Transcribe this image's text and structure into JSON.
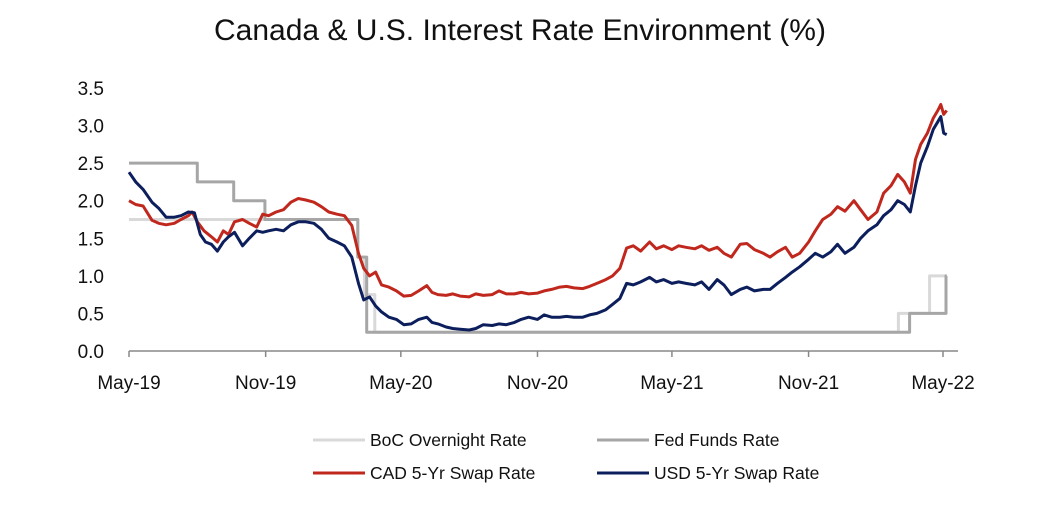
{
  "chart_data": {
    "type": "line",
    "title": "Canada & U.S. Interest Rate Environment (%)",
    "xlabel": "",
    "ylabel": "",
    "x_range": [
      "2019-05-01",
      "2022-05-01"
    ],
    "ylim": [
      0,
      3.5
    ],
    "y_ticks": [
      "0.0",
      "0.5",
      "1.0",
      "1.5",
      "2.0",
      "2.5",
      "3.0",
      "3.5"
    ],
    "x_ticks": [
      {
        "date": "2019-05-01",
        "label": "May-19"
      },
      {
        "date": "2019-11-01",
        "label": "Nov-19"
      },
      {
        "date": "2020-05-01",
        "label": "May-20"
      },
      {
        "date": "2020-11-01",
        "label": "Nov-20"
      },
      {
        "date": "2021-05-01",
        "label": "May-21"
      },
      {
        "date": "2021-11-01",
        "label": "Nov-21"
      },
      {
        "date": "2022-05-01",
        "label": "May-22"
      }
    ],
    "grid": false,
    "legend_position": "bottom",
    "legend_order": [
      0,
      2,
      1,
      3
    ],
    "series": [
      {
        "name": "BoC Overnight Rate",
        "color": "#d9d9d9",
        "step": true,
        "points": [
          [
            "2019-05-01",
            1.75
          ],
          [
            "2020-03-04",
            1.25
          ],
          [
            "2020-03-13",
            0.75
          ],
          [
            "2020-03-27",
            0.25
          ],
          [
            "2022-03-02",
            0.5
          ],
          [
            "2022-04-13",
            1.0
          ],
          [
            "2022-05-06",
            1.0
          ]
        ]
      },
      {
        "name": "Fed Funds Rate",
        "color": "#a6a6a6",
        "step": true,
        "points": [
          [
            "2019-05-01",
            2.5
          ],
          [
            "2019-08-01",
            2.25
          ],
          [
            "2019-09-19",
            2.0
          ],
          [
            "2019-10-31",
            1.75
          ],
          [
            "2020-03-04",
            1.25
          ],
          [
            "2020-03-16",
            0.25
          ],
          [
            "2022-03-17",
            0.5
          ],
          [
            "2022-05-05",
            1.0
          ],
          [
            "2022-05-06",
            1.0
          ]
        ]
      },
      {
        "name": "CAD 5-Yr Swap Rate",
        "color": "#c0281e",
        "step": false,
        "points": [
          [
            "2019-05-01",
            2.0
          ],
          [
            "2019-05-10",
            1.95
          ],
          [
            "2019-05-20",
            1.93
          ],
          [
            "2019-06-01",
            1.74
          ],
          [
            "2019-06-10",
            1.7
          ],
          [
            "2019-06-20",
            1.68
          ],
          [
            "2019-07-01",
            1.7
          ],
          [
            "2019-07-10",
            1.75
          ],
          [
            "2019-07-20",
            1.8
          ],
          [
            "2019-07-25",
            1.85
          ],
          [
            "2019-08-01",
            1.72
          ],
          [
            "2019-08-10",
            1.6
          ],
          [
            "2019-08-20",
            1.52
          ],
          [
            "2019-08-28",
            1.45
          ],
          [
            "2019-09-05",
            1.6
          ],
          [
            "2019-09-12",
            1.55
          ],
          [
            "2019-09-20",
            1.72
          ],
          [
            "2019-10-01",
            1.75
          ],
          [
            "2019-10-10",
            1.7
          ],
          [
            "2019-10-20",
            1.65
          ],
          [
            "2019-10-28",
            1.82
          ],
          [
            "2019-11-05",
            1.8
          ],
          [
            "2019-11-15",
            1.85
          ],
          [
            "2019-11-25",
            1.88
          ],
          [
            "2019-12-05",
            1.98
          ],
          [
            "2019-12-15",
            2.03
          ],
          [
            "2019-12-25",
            2.01
          ],
          [
            "2020-01-05",
            1.98
          ],
          [
            "2020-01-15",
            1.92
          ],
          [
            "2020-01-25",
            1.85
          ],
          [
            "2020-02-05",
            1.82
          ],
          [
            "2020-02-15",
            1.8
          ],
          [
            "2020-02-25",
            1.67
          ],
          [
            "2020-03-05",
            1.3
          ],
          [
            "2020-03-12",
            1.1
          ],
          [
            "2020-03-20",
            1.0
          ],
          [
            "2020-03-28",
            1.05
          ],
          [
            "2020-04-05",
            0.88
          ],
          [
            "2020-04-15",
            0.85
          ],
          [
            "2020-04-25",
            0.8
          ],
          [
            "2020-05-05",
            0.73
          ],
          [
            "2020-05-15",
            0.74
          ],
          [
            "2020-05-25",
            0.8
          ],
          [
            "2020-06-05",
            0.87
          ],
          [
            "2020-06-12",
            0.78
          ],
          [
            "2020-06-20",
            0.75
          ],
          [
            "2020-07-01",
            0.74
          ],
          [
            "2020-07-10",
            0.76
          ],
          [
            "2020-07-20",
            0.73
          ],
          [
            "2020-08-01",
            0.72
          ],
          [
            "2020-08-10",
            0.76
          ],
          [
            "2020-08-20",
            0.74
          ],
          [
            "2020-09-01",
            0.75
          ],
          [
            "2020-09-10",
            0.8
          ],
          [
            "2020-09-20",
            0.76
          ],
          [
            "2020-10-01",
            0.76
          ],
          [
            "2020-10-10",
            0.78
          ],
          [
            "2020-10-20",
            0.76
          ],
          [
            "2020-11-01",
            0.77
          ],
          [
            "2020-11-10",
            0.8
          ],
          [
            "2020-11-20",
            0.82
          ],
          [
            "2020-12-01",
            0.85
          ],
          [
            "2020-12-10",
            0.86
          ],
          [
            "2020-12-20",
            0.84
          ],
          [
            "2021-01-01",
            0.83
          ],
          [
            "2021-01-10",
            0.86
          ],
          [
            "2021-01-20",
            0.9
          ],
          [
            "2021-02-01",
            0.95
          ],
          [
            "2021-02-10",
            1.0
          ],
          [
            "2021-02-20",
            1.1
          ],
          [
            "2021-03-01",
            1.37
          ],
          [
            "2021-03-10",
            1.4
          ],
          [
            "2021-03-20",
            1.33
          ],
          [
            "2021-04-01",
            1.45
          ],
          [
            "2021-04-10",
            1.36
          ],
          [
            "2021-04-20",
            1.4
          ],
          [
            "2021-05-01",
            1.35
          ],
          [
            "2021-05-10",
            1.4
          ],
          [
            "2021-05-20",
            1.38
          ],
          [
            "2021-06-01",
            1.36
          ],
          [
            "2021-06-10",
            1.4
          ],
          [
            "2021-06-20",
            1.34
          ],
          [
            "2021-07-01",
            1.38
          ],
          [
            "2021-07-10",
            1.3
          ],
          [
            "2021-07-20",
            1.25
          ],
          [
            "2021-08-01",
            1.42
          ],
          [
            "2021-08-10",
            1.43
          ],
          [
            "2021-08-20",
            1.35
          ],
          [
            "2021-09-01",
            1.3
          ],
          [
            "2021-09-10",
            1.25
          ],
          [
            "2021-09-20",
            1.32
          ],
          [
            "2021-10-01",
            1.38
          ],
          [
            "2021-10-10",
            1.25
          ],
          [
            "2021-10-20",
            1.3
          ],
          [
            "2021-11-01",
            1.45
          ],
          [
            "2021-11-10",
            1.6
          ],
          [
            "2021-11-20",
            1.75
          ],
          [
            "2021-12-01",
            1.82
          ],
          [
            "2021-12-10",
            1.92
          ],
          [
            "2021-12-20",
            1.86
          ],
          [
            "2022-01-01",
            2.0
          ],
          [
            "2022-01-10",
            1.88
          ],
          [
            "2022-01-20",
            1.75
          ],
          [
            "2022-02-01",
            1.85
          ],
          [
            "2022-02-10",
            2.1
          ],
          [
            "2022-02-20",
            2.2
          ],
          [
            "2022-03-01",
            2.35
          ],
          [
            "2022-03-10",
            2.25
          ],
          [
            "2022-03-18",
            2.1
          ],
          [
            "2022-03-25",
            2.55
          ],
          [
            "2022-04-01",
            2.75
          ],
          [
            "2022-04-10",
            2.9
          ],
          [
            "2022-04-18",
            3.1
          ],
          [
            "2022-04-24",
            3.2
          ],
          [
            "2022-04-28",
            3.28
          ],
          [
            "2022-05-02",
            3.15
          ],
          [
            "2022-05-06",
            3.2
          ]
        ]
      },
      {
        "name": "USD 5-Yr Swap Rate",
        "color": "#0c1f5c",
        "step": false,
        "points": [
          [
            "2019-05-01",
            2.38
          ],
          [
            "2019-05-10",
            2.25
          ],
          [
            "2019-05-20",
            2.15
          ],
          [
            "2019-06-01",
            1.98
          ],
          [
            "2019-06-10",
            1.9
          ],
          [
            "2019-06-20",
            1.78
          ],
          [
            "2019-07-01",
            1.78
          ],
          [
            "2019-07-10",
            1.8
          ],
          [
            "2019-07-20",
            1.85
          ],
          [
            "2019-07-28",
            1.84
          ],
          [
            "2019-08-05",
            1.55
          ],
          [
            "2019-08-12",
            1.45
          ],
          [
            "2019-08-20",
            1.42
          ],
          [
            "2019-08-28",
            1.33
          ],
          [
            "2019-09-05",
            1.45
          ],
          [
            "2019-09-12",
            1.52
          ],
          [
            "2019-09-20",
            1.58
          ],
          [
            "2019-10-01",
            1.4
          ],
          [
            "2019-10-10",
            1.5
          ],
          [
            "2019-10-20",
            1.6
          ],
          [
            "2019-10-28",
            1.58
          ],
          [
            "2019-11-05",
            1.6
          ],
          [
            "2019-11-15",
            1.62
          ],
          [
            "2019-11-25",
            1.6
          ],
          [
            "2019-12-05",
            1.68
          ],
          [
            "2019-12-15",
            1.72
          ],
          [
            "2019-12-25",
            1.72
          ],
          [
            "2020-01-05",
            1.7
          ],
          [
            "2020-01-15",
            1.62
          ],
          [
            "2020-01-25",
            1.5
          ],
          [
            "2020-02-05",
            1.45
          ],
          [
            "2020-02-15",
            1.4
          ],
          [
            "2020-02-25",
            1.25
          ],
          [
            "2020-03-05",
            0.9
          ],
          [
            "2020-03-12",
            0.68
          ],
          [
            "2020-03-20",
            0.72
          ],
          [
            "2020-03-28",
            0.6
          ],
          [
            "2020-04-05",
            0.52
          ],
          [
            "2020-04-15",
            0.45
          ],
          [
            "2020-04-25",
            0.42
          ],
          [
            "2020-05-05",
            0.35
          ],
          [
            "2020-05-15",
            0.36
          ],
          [
            "2020-05-25",
            0.42
          ],
          [
            "2020-06-05",
            0.45
          ],
          [
            "2020-06-12",
            0.38
          ],
          [
            "2020-06-20",
            0.36
          ],
          [
            "2020-07-01",
            0.32
          ],
          [
            "2020-07-10",
            0.3
          ],
          [
            "2020-07-20",
            0.29
          ],
          [
            "2020-08-01",
            0.28
          ],
          [
            "2020-08-10",
            0.3
          ],
          [
            "2020-08-20",
            0.35
          ],
          [
            "2020-09-01",
            0.34
          ],
          [
            "2020-09-10",
            0.36
          ],
          [
            "2020-09-20",
            0.35
          ],
          [
            "2020-10-01",
            0.38
          ],
          [
            "2020-10-10",
            0.42
          ],
          [
            "2020-10-20",
            0.45
          ],
          [
            "2020-11-01",
            0.42
          ],
          [
            "2020-11-10",
            0.48
          ],
          [
            "2020-11-20",
            0.45
          ],
          [
            "2020-12-01",
            0.45
          ],
          [
            "2020-12-10",
            0.46
          ],
          [
            "2020-12-20",
            0.45
          ],
          [
            "2021-01-01",
            0.45
          ],
          [
            "2021-01-10",
            0.48
          ],
          [
            "2021-01-20",
            0.5
          ],
          [
            "2021-02-01",
            0.55
          ],
          [
            "2021-02-10",
            0.62
          ],
          [
            "2021-02-20",
            0.7
          ],
          [
            "2021-03-01",
            0.9
          ],
          [
            "2021-03-10",
            0.88
          ],
          [
            "2021-03-20",
            0.92
          ],
          [
            "2021-04-01",
            0.98
          ],
          [
            "2021-04-10",
            0.92
          ],
          [
            "2021-04-20",
            0.95
          ],
          [
            "2021-05-01",
            0.9
          ],
          [
            "2021-05-10",
            0.92
          ],
          [
            "2021-05-20",
            0.9
          ],
          [
            "2021-06-01",
            0.88
          ],
          [
            "2021-06-10",
            0.92
          ],
          [
            "2021-06-20",
            0.82
          ],
          [
            "2021-07-01",
            0.95
          ],
          [
            "2021-07-10",
            0.88
          ],
          [
            "2021-07-20",
            0.75
          ],
          [
            "2021-08-01",
            0.82
          ],
          [
            "2021-08-10",
            0.85
          ],
          [
            "2021-08-20",
            0.8
          ],
          [
            "2021-09-01",
            0.82
          ],
          [
            "2021-09-10",
            0.82
          ],
          [
            "2021-09-20",
            0.9
          ],
          [
            "2021-10-01",
            0.98
          ],
          [
            "2021-10-10",
            1.05
          ],
          [
            "2021-10-20",
            1.12
          ],
          [
            "2021-11-01",
            1.22
          ],
          [
            "2021-11-10",
            1.3
          ],
          [
            "2021-11-20",
            1.25
          ],
          [
            "2021-12-01",
            1.32
          ],
          [
            "2021-12-10",
            1.42
          ],
          [
            "2021-12-20",
            1.3
          ],
          [
            "2022-01-01",
            1.38
          ],
          [
            "2022-01-10",
            1.5
          ],
          [
            "2022-01-20",
            1.6
          ],
          [
            "2022-02-01",
            1.68
          ],
          [
            "2022-02-10",
            1.8
          ],
          [
            "2022-02-20",
            1.88
          ],
          [
            "2022-03-01",
            2.0
          ],
          [
            "2022-03-10",
            1.95
          ],
          [
            "2022-03-18",
            1.85
          ],
          [
            "2022-03-25",
            2.2
          ],
          [
            "2022-04-01",
            2.5
          ],
          [
            "2022-04-10",
            2.72
          ],
          [
            "2022-04-18",
            2.95
          ],
          [
            "2022-04-24",
            3.05
          ],
          [
            "2022-04-28",
            3.12
          ],
          [
            "2022-05-02",
            2.9
          ],
          [
            "2022-05-06",
            2.88
          ]
        ]
      }
    ]
  }
}
